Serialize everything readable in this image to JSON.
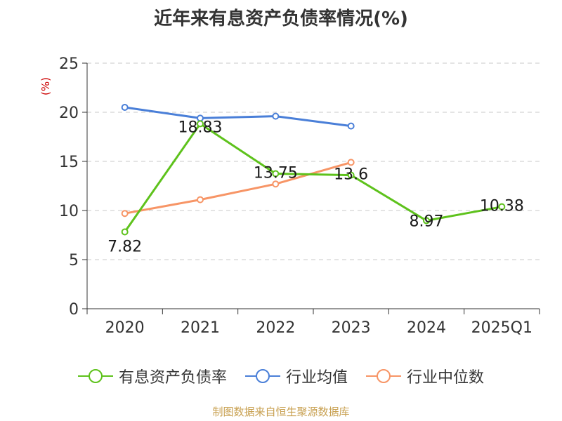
{
  "title": "近年来有息资产负债率情况(%)",
  "unit_label": "(%)",
  "footer": "制图数据来自恒生聚源数据库",
  "colors": {
    "debt_ratio": "#5ec21c",
    "industry_mean": "#4a7fd8",
    "industry_median": "#f79566",
    "grid": "#c8c8c8",
    "axis": "#333333",
    "unit": "#cc0000",
    "footer": "#c8a050"
  },
  "chart_data": {
    "type": "line",
    "title": "近年来有息资产负债率情况(%)",
    "xlabel": "",
    "ylabel": "(%)",
    "categories": [
      "2020",
      "2021",
      "2022",
      "2023",
      "2024",
      "2025Q1"
    ],
    "ylim": [
      0,
      25
    ],
    "yticks": [
      0,
      5,
      10,
      15,
      20,
      25
    ],
    "grid": "horizontal dashed",
    "legend_position": "bottom",
    "series": [
      {
        "name": "有息资产负债率",
        "color": "#5ec21c",
        "values": [
          7.82,
          18.83,
          13.75,
          13.6,
          8.97,
          10.38
        ],
        "labels": [
          "7.82",
          "18.83",
          "13.75",
          "13.6",
          "8.97",
          "10.38"
        ]
      },
      {
        "name": "行业均值",
        "color": "#4a7fd8",
        "values": [
          20.5,
          19.4,
          19.6,
          18.6,
          null,
          null
        ]
      },
      {
        "name": "行业中位数",
        "color": "#f79566",
        "values": [
          9.7,
          11.1,
          12.7,
          14.9,
          null,
          null
        ]
      }
    ]
  }
}
